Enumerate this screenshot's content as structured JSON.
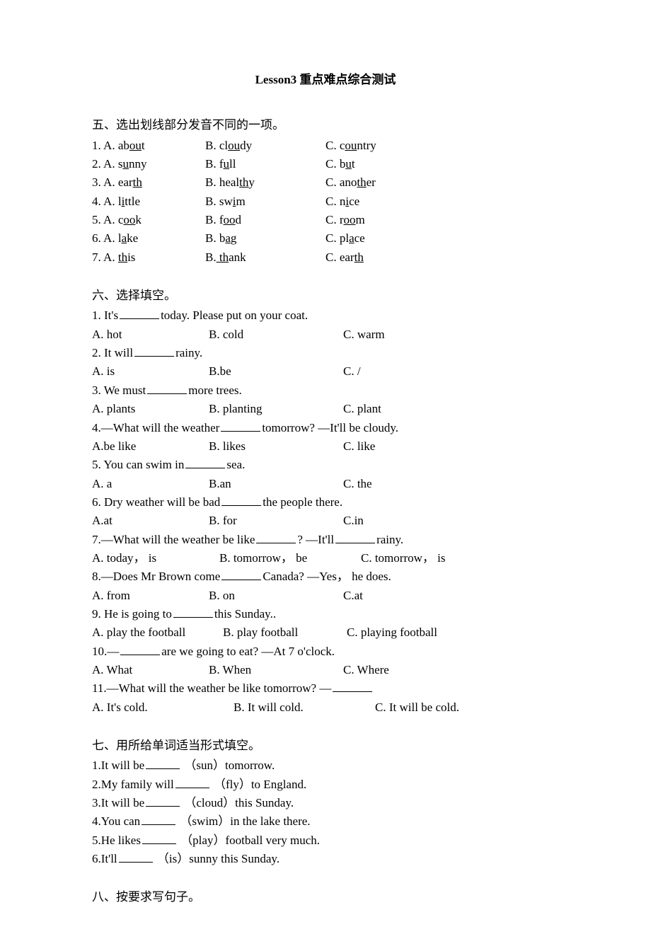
{
  "title": "Lesson3 重点难点综合测试",
  "section5": {
    "heading": "五、选出划线部分发音不同的一项。",
    "items": [
      {
        "n": "1.",
        "a_pre": "A. ab",
        "a_u": "ou",
        "a_post": "t",
        "b_pre": "B. cl",
        "b_u": "ou",
        "b_post": "dy",
        "c_pre": "C. c",
        "c_u": "ou",
        "c_post": "ntry"
      },
      {
        "n": "2.",
        "a_pre": "A. s",
        "a_u": "u",
        "a_post": "nny",
        "b_pre": "B. f",
        "b_u": "u",
        "b_post": "ll",
        "c_pre": "C. b",
        "c_u": "u",
        "c_post": "t"
      },
      {
        "n": "3.",
        "a_pre": "A. ear",
        "a_u": "th",
        "a_post": "",
        "b_pre": "B. heal",
        "b_u": "th",
        "b_post": "y",
        "c_pre": "C. ano",
        "c_u": "th",
        "c_post": "er"
      },
      {
        "n": "4.",
        "a_pre": "A. l",
        "a_u": "i",
        "a_post": "ttle",
        "b_pre": "B. sw",
        "b_u": "i",
        "b_post": "m",
        "c_pre": "C. n",
        "c_u": "i",
        "c_post": "ce"
      },
      {
        "n": "5.",
        "a_pre": "A. c",
        "a_u": "oo",
        "a_post": "k",
        "b_pre": "B. f",
        "b_u": "oo",
        "b_post": "d",
        "c_pre": "C. r",
        "c_u": "oo",
        "c_post": "m"
      },
      {
        "n": "6.",
        "a_pre": "A. l",
        "a_u": "a",
        "a_post": "ke",
        "b_pre": "B. b",
        "b_u": "a",
        "b_post": "g",
        "c_pre": "C. pl",
        "c_u": "a",
        "c_post": "ce"
      },
      {
        "n": "7.",
        "a_pre": "A. ",
        "a_u": "th",
        "a_post": "is",
        "b_pre": "B.",
        "b_u": " th",
        "b_post": "ank",
        "c_pre": "C. ear",
        "c_u": "th",
        "c_post": ""
      }
    ],
    "col_a_width": 160,
    "col_b_width": 170
  },
  "section6": {
    "heading": "六、选择填空。",
    "q1": {
      "pre": "1. It's",
      "post": "today. Please put on your coat.",
      "a": "A. hot",
      "b": "B. cold",
      "c": "C. warm"
    },
    "q2": {
      "pre": "2. It will",
      "post": "rainy.",
      "a": "A. is",
      "b": "B.be",
      "c": "C. /"
    },
    "q3": {
      "pre": "3. We must",
      "post": "more trees.",
      "a": "A. plants",
      "b": "B. planting",
      "c": "C. plant"
    },
    "q4": {
      "pre": "4.—What will the weather",
      "post": "tomorrow?     —It'll be cloudy.",
      "a": "A.be like",
      "b": "B. likes",
      "c": "C. like"
    },
    "q5": {
      "pre": "5. You can swim in",
      "post": "sea.",
      "a": "A. a",
      "b": "B.an",
      "c": "C. the"
    },
    "q6": {
      "pre": "6. Dry weather will be bad",
      "post": "the people there.",
      "a": "A.at",
      "b": "B. for",
      "c": "C.in"
    },
    "q7": {
      "pre": "7.—What will the weather be like",
      "mid": "?    —It'll",
      "post": "rainy.",
      "a": "A. today，  is",
      "b": "B. tomorrow，  be",
      "c": "C. tomorrow，  is"
    },
    "q8": {
      "pre": "8.—Does Mr Brown come",
      "post": "Canada?   —Yes，  he does.",
      "a": "A. from",
      "b": "B. on",
      "c": "C.at"
    },
    "q9": {
      "pre": "9. He is going to",
      "post": "this Sunday..",
      "a": "A. play the football",
      "b": "B. play football",
      "c": "C. playing football"
    },
    "q10": {
      "pre": "10.—",
      "post": "are we going to eat?     —At 7 o'clock.",
      "a": "A. What",
      "b": "B. When",
      "c": "C. Where"
    },
    "q11": {
      "pre": "11.—What will the weather be like tomorrow?    —",
      "a": "A. It's cold.",
      "b": "B. It will cold.",
      "c": "C. It will be cold."
    },
    "col_a_width": 165,
    "col_b_width": 190
  },
  "section7": {
    "heading": "七、用所给单词适当形式填空。",
    "items": [
      {
        "pre": "1.It will be",
        "hint": "（sun）tomorrow."
      },
      {
        "pre": "2.My family will",
        "hint": "（fly）to England."
      },
      {
        "pre": "3.It will be",
        "hint": "（cloud）this Sunday."
      },
      {
        "pre": "4.You can",
        "hint": "（swim）in the lake there."
      },
      {
        "pre": "5.He likes",
        "hint": "（play）football very much."
      },
      {
        "pre": "6.It'll",
        "hint": "（is）sunny this Sunday."
      }
    ]
  },
  "section8": {
    "heading": "八、按要求写句子。"
  }
}
